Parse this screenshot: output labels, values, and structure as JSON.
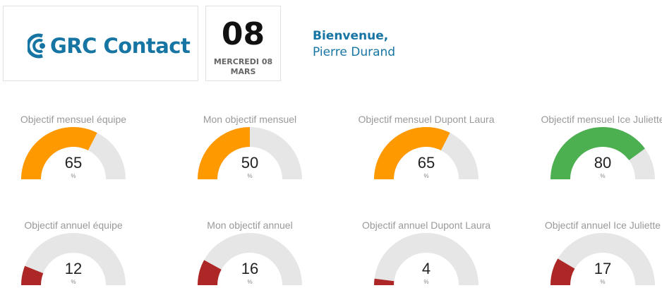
{
  "header": {
    "logo_text": "GRC Contact",
    "date_day": "08",
    "date_label": "MERCREDI 08 MARS",
    "welcome_title": "Bienvenue,",
    "welcome_name": "Pierre Durand"
  },
  "colors": {
    "brand": "#1775a3",
    "track": "#e6e6e6",
    "orange": "#ff9900",
    "green": "#4caf50",
    "red": "#ad2727"
  },
  "gauges": [
    {
      "title": "Objectif mensuel équipe",
      "value": 65,
      "unit": "%",
      "color": "orange"
    },
    {
      "title": "Mon objectif mensuel",
      "value": 50,
      "unit": "%",
      "color": "orange"
    },
    {
      "title": "Objectif mensuel Dupont Laura",
      "value": 65,
      "unit": "%",
      "color": "orange"
    },
    {
      "title": "Objectif mensuel Ice Juliette",
      "value": 80,
      "unit": "%",
      "color": "green"
    },
    {
      "title": "Objectif annuel équipe",
      "value": 12,
      "unit": "%",
      "color": "red"
    },
    {
      "title": "Mon objectif annuel",
      "value": 16,
      "unit": "%",
      "color": "red"
    },
    {
      "title": "Objectif annuel Dupont Laura",
      "value": 4,
      "unit": "%",
      "color": "red"
    },
    {
      "title": "Objectif annuel Ice Juliette",
      "value": 17,
      "unit": "%",
      "color": "red"
    }
  ]
}
